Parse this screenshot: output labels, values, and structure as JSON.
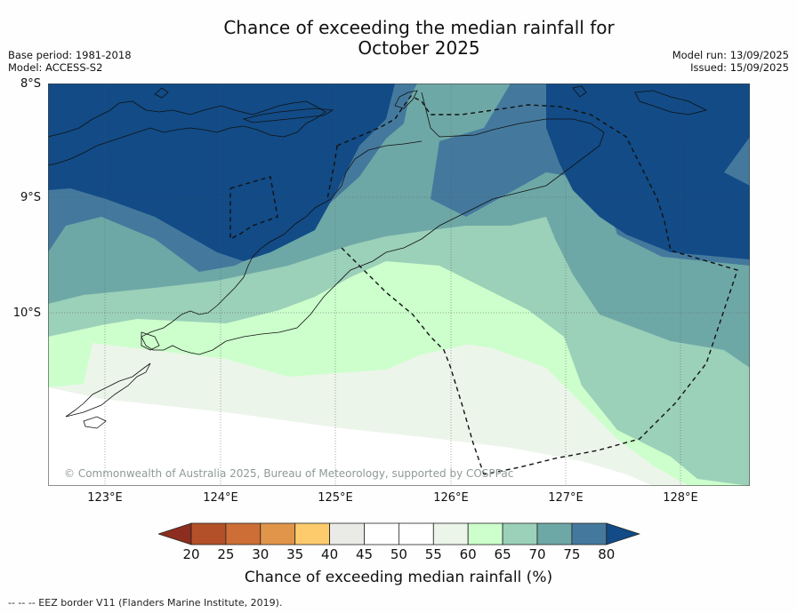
{
  "title_line1": "Chance of exceeding the median rainfall for",
  "title_line2": "October 2025",
  "base_period": "Base period: 1981-2018",
  "model": "Model: ACCESS-S2",
  "model_run": "Model run: 13/09/2025",
  "issued": "Issued: 15/09/2025",
  "lat_labels": [
    "8°S",
    "9°S",
    "10°S"
  ],
  "lon_labels": [
    "123°E",
    "124°E",
    "125°E",
    "126°E",
    "127°E",
    "128°E"
  ],
  "copyright": "© Commonwealth of Australia 2025, Bureau of Meteorology, supported by COSPPac",
  "colorbar": {
    "ticks": [
      "20",
      "25",
      "30",
      "35",
      "40",
      "45",
      "50",
      "55",
      "60",
      "65",
      "70",
      "75",
      "80"
    ],
    "colors": [
      "#8c2d1f",
      "#b3502a",
      "#cc6e35",
      "#e1954a",
      "#fecb6c",
      "#eaeae6",
      "#ffffff",
      "#ffffff",
      "#ecf5ea",
      "#ccffcc",
      "#9bd0b9",
      "#6ea8a6",
      "#44799d",
      "#124b86"
    ],
    "title": "Chance of exceeding median rainfall (%)"
  },
  "footnote": "--  --  -- EEZ border V11 (Flanders Marine Institute, 2019).",
  "map": {
    "lat_range": [
      "8°S",
      "11.5°S"
    ],
    "lon_range": [
      "122.5°E",
      "128.6°E"
    ],
    "zone_colors": {
      "80": "#124b86",
      "75": "#44799d",
      "70": "#6ea8a6",
      "65": "#9bd0b9",
      "60": "#ccffcc",
      "55": "#ecf5ea",
      "50": "#ffffff"
    }
  }
}
